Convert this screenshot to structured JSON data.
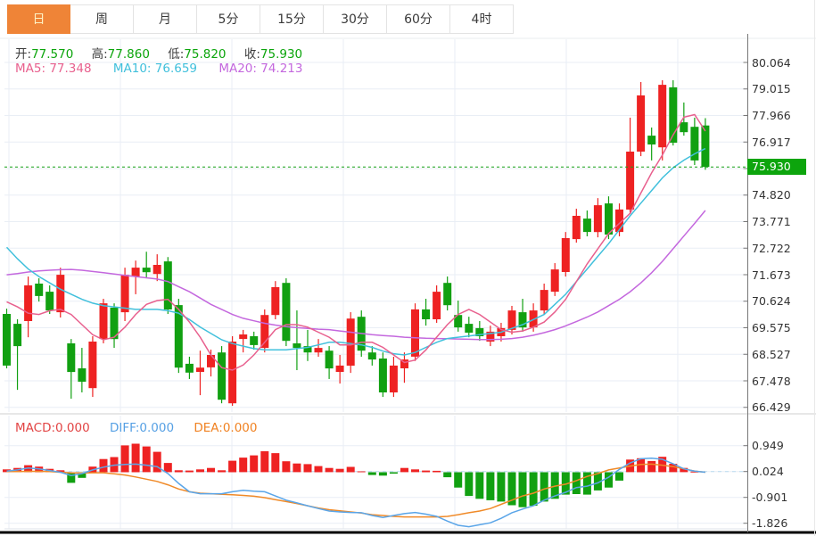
{
  "tabbar": {
    "tabs": [
      {
        "label": "日",
        "selected": true
      },
      {
        "label": "周",
        "selected": false
      },
      {
        "label": "月",
        "selected": false
      },
      {
        "label": "5分",
        "selected": false
      },
      {
        "label": "15分",
        "selected": false
      },
      {
        "label": "30分",
        "selected": false
      },
      {
        "label": "60分",
        "selected": false
      },
      {
        "label": "4时",
        "selected": false
      }
    ]
  },
  "quote": {
    "open_label": "开:",
    "open_value": "77.570",
    "high_label": "高:",
    "high_value": "77.860",
    "low_label": "低:",
    "low_value": "75.820",
    "close_label": "收:",
    "close_value": "75.930"
  },
  "ma_legend": {
    "ma5_label": "MA5:",
    "ma5_value": "77.348",
    "ma10_label": "MA10:",
    "ma10_value": "76.659",
    "ma20_label": "MA20:",
    "ma20_value": "74.213"
  },
  "macd_legend": {
    "macd_label": "MACD:",
    "macd_value": "0.000",
    "diff_label": "DIFF:",
    "diff_value": "0.000",
    "dea_label": "DEA:",
    "dea_value": "0.000"
  },
  "current_price_tag": "75.930",
  "colors": {
    "up": "#ee2222",
    "down": "#11a011",
    "ma5": "#e8608e",
    "ma10": "#41c0dc",
    "ma20": "#c468de",
    "diff": "#5aa5e8",
    "dea": "#f08a28",
    "tab_active": "#ef8437",
    "price_tag": "#0da50d",
    "grid": "#e9eef5",
    "axis": "#777777",
    "zero_dash": "#b9daf0",
    "price_dash": "#14a014"
  },
  "chart_data": {
    "type": "candlestick",
    "convention": "red=up green=down (CN)",
    "panels": [
      "price+MA5/MA10/MA20",
      "MACD histogram + DIFF + DEA"
    ],
    "price_axis_labels": [
      "80.064",
      "79.015",
      "77.966",
      "76.917",
      "75.930",
      "74.820",
      "73.771",
      "72.722",
      "71.673",
      "70.624",
      "69.575",
      "68.527",
      "67.478",
      "66.429"
    ],
    "current_price_label_index": 4,
    "current_price": 75.93,
    "price_ylim": [
      66.429,
      80.064
    ],
    "candles": [
      [
        70.12,
        70.33,
        67.97,
        68.08
      ],
      [
        69.73,
        69.91,
        67.12,
        68.85
      ],
      [
        69.84,
        71.6,
        69.2,
        71.25
      ],
      [
        71.32,
        71.53,
        70.61,
        70.83
      ],
      [
        71.0,
        71.25,
        70.12,
        70.26
      ],
      [
        70.19,
        71.95,
        69.98,
        71.67
      ],
      [
        68.96,
        69.13,
        66.77,
        67.83
      ],
      [
        67.97,
        68.78,
        67.02,
        67.44
      ],
      [
        67.19,
        69.24,
        66.84,
        69.03
      ],
      [
        69.13,
        70.72,
        68.96,
        70.54
      ],
      [
        70.37,
        70.54,
        68.78,
        69.13
      ],
      [
        70.19,
        71.95,
        69.84,
        71.67
      ],
      [
        71.6,
        72.23,
        70.9,
        71.95
      ],
      [
        71.95,
        72.58,
        71.53,
        71.77
      ],
      [
        71.7,
        72.48,
        71.42,
        72.06
      ],
      [
        72.2,
        72.37,
        70.12,
        70.3
      ],
      [
        70.47,
        70.72,
        67.79,
        68.0
      ],
      [
        68.15,
        68.43,
        67.55,
        67.8
      ],
      [
        67.83,
        68.67,
        66.91,
        68.0
      ],
      [
        68.01,
        68.71,
        67.65,
        68.5
      ],
      [
        68.6,
        68.85,
        66.59,
        66.73
      ],
      [
        66.59,
        69.24,
        66.49,
        69.03
      ],
      [
        69.13,
        69.49,
        68.6,
        69.31
      ],
      [
        69.24,
        69.42,
        68.71,
        68.89
      ],
      [
        68.78,
        70.3,
        68.6,
        70.08
      ],
      [
        70.08,
        71.42,
        69.91,
        71.18
      ],
      [
        71.35,
        71.53,
        68.85,
        69.06
      ],
      [
        68.96,
        70.26,
        67.9,
        68.78
      ],
      [
        68.85,
        69.49,
        68.26,
        68.6
      ],
      [
        68.6,
        69.13,
        68.43,
        68.78
      ],
      [
        68.67,
        68.85,
        67.55,
        67.97
      ],
      [
        67.83,
        68.5,
        67.37,
        68.08
      ],
      [
        68.08,
        70.19,
        67.79,
        69.94
      ],
      [
        70.01,
        70.26,
        68.43,
        68.67
      ],
      [
        68.6,
        68.85,
        68.08,
        68.32
      ],
      [
        68.36,
        68.6,
        66.84,
        67.02
      ],
      [
        67.02,
        68.43,
        66.84,
        68.08
      ],
      [
        67.97,
        68.6,
        67.4,
        68.32
      ],
      [
        68.43,
        70.54,
        68.26,
        70.3
      ],
      [
        70.3,
        70.72,
        69.66,
        69.91
      ],
      [
        69.91,
        71.25,
        69.77,
        71.0
      ],
      [
        71.35,
        71.6,
        70.26,
        70.47
      ],
      [
        70.08,
        70.65,
        69.42,
        69.59
      ],
      [
        69.73,
        70.01,
        69.2,
        69.38
      ],
      [
        69.56,
        69.84,
        69.06,
        69.24
      ],
      [
        69.03,
        69.66,
        68.85,
        69.42
      ],
      [
        69.24,
        69.77,
        69.03,
        69.56
      ],
      [
        69.49,
        70.44,
        69.31,
        70.26
      ],
      [
        70.19,
        70.72,
        69.42,
        69.59
      ],
      [
        69.59,
        70.54,
        69.42,
        70.26
      ],
      [
        70.26,
        71.32,
        70.12,
        71.07
      ],
      [
        71.0,
        72.13,
        70.83,
        71.88
      ],
      [
        71.78,
        73.36,
        71.6,
        73.12
      ],
      [
        73.08,
        74.28,
        72.94,
        74.0
      ],
      [
        73.89,
        74.21,
        73.19,
        73.36
      ],
      [
        73.36,
        74.7,
        73.15,
        74.42
      ],
      [
        74.49,
        74.77,
        73.08,
        73.26
      ],
      [
        73.36,
        74.49,
        73.19,
        74.25
      ],
      [
        74.25,
        77.88,
        74.07,
        76.54
      ],
      [
        76.54,
        79.29,
        76.36,
        78.76
      ],
      [
        77.17,
        77.49,
        76.19,
        76.82
      ],
      [
        76.71,
        79.36,
        76.19,
        79.18
      ],
      [
        79.08,
        79.36,
        76.78,
        76.89
      ],
      [
        77.7,
        78.48,
        77.17,
        77.31
      ],
      [
        77.52,
        77.88,
        76.01,
        76.19
      ],
      [
        77.57,
        77.86,
        75.82,
        75.93
      ]
    ],
    "ma5": [
      70.6,
      70.4,
      70.15,
      70.1,
      70.25,
      70.3,
      70.1,
      69.7,
      69.3,
      69.1,
      69.2,
      69.6,
      70.1,
      70.5,
      70.65,
      70.7,
      70.3,
      69.8,
      69.2,
      68.5,
      68.0,
      67.9,
      68.1,
      68.5,
      69.0,
      69.5,
      69.7,
      69.7,
      69.6,
      69.4,
      69.2,
      68.9,
      68.9,
      69.0,
      69.0,
      68.8,
      68.5,
      68.2,
      68.3,
      68.7,
      69.2,
      69.7,
      70.1,
      70.3,
      70.1,
      69.8,
      69.5,
      69.4,
      69.45,
      69.6,
      69.8,
      70.2,
      70.7,
      71.4,
      72.1,
      72.7,
      73.3,
      73.7,
      74.1,
      74.9,
      75.7,
      76.4,
      77.2,
      77.9,
      78.0,
      77.35
    ],
    "ma10": [
      72.76,
      72.3,
      71.9,
      71.6,
      71.35,
      71.1,
      70.9,
      70.7,
      70.55,
      70.45,
      70.4,
      70.35,
      70.3,
      70.3,
      70.3,
      70.25,
      70.15,
      69.9,
      69.6,
      69.35,
      69.1,
      68.95,
      68.85,
      68.75,
      68.7,
      68.7,
      68.7,
      68.75,
      68.8,
      68.9,
      69.0,
      69.0,
      68.95,
      68.9,
      68.8,
      68.65,
      68.55,
      68.5,
      68.6,
      68.8,
      69.0,
      69.15,
      69.2,
      69.25,
      69.3,
      69.35,
      69.4,
      69.55,
      69.7,
      69.9,
      70.1,
      70.5,
      70.9,
      71.4,
      71.9,
      72.4,
      72.9,
      73.45,
      74.0,
      74.5,
      75.0,
      75.5,
      75.9,
      76.2,
      76.45,
      76.66
    ],
    "ma20": [
      71.67,
      71.72,
      71.78,
      71.82,
      71.85,
      71.87,
      71.88,
      71.85,
      71.8,
      71.75,
      71.7,
      71.65,
      71.6,
      71.55,
      71.5,
      71.4,
      71.2,
      71.0,
      70.75,
      70.5,
      70.3,
      70.1,
      69.95,
      69.85,
      69.75,
      69.68,
      69.62,
      69.58,
      69.55,
      69.52,
      69.5,
      69.45,
      69.4,
      69.35,
      69.3,
      69.27,
      69.24,
      69.2,
      69.18,
      69.16,
      69.15,
      69.14,
      69.13,
      69.12,
      69.11,
      69.11,
      69.12,
      69.15,
      69.2,
      69.28,
      69.38,
      69.5,
      69.65,
      69.82,
      70.0,
      70.2,
      70.45,
      70.7,
      71.0,
      71.35,
      71.75,
      72.2,
      72.7,
      73.2,
      73.7,
      74.21
    ],
    "macd_axis_labels": [
      "0.949",
      "0.024",
      "-0.901",
      "-1.826"
    ],
    "macd_tick_values": [
      0.949,
      0.024,
      -0.901,
      -1.826
    ],
    "macd_hist": [
      0.1,
      0.15,
      0.25,
      0.2,
      0.12,
      0.07,
      -0.38,
      -0.2,
      0.2,
      0.47,
      0.54,
      0.96,
      1.02,
      0.92,
      0.73,
      0.33,
      0.07,
      0.06,
      0.1,
      0.15,
      0.07,
      0.41,
      0.52,
      0.6,
      0.75,
      0.68,
      0.39,
      0.31,
      0.29,
      0.22,
      0.15,
      0.12,
      0.19,
      0.03,
      -0.1,
      -0.12,
      -0.05,
      0.15,
      0.1,
      0.06,
      0.05,
      -0.18,
      -0.55,
      -0.85,
      -0.95,
      -1.0,
      -1.05,
      -1.18,
      -1.25,
      -1.2,
      -1.05,
      -0.95,
      -0.8,
      -0.78,
      -0.8,
      -0.65,
      -0.55,
      -0.3,
      0.45,
      0.5,
      0.4,
      0.55,
      0.3,
      0.15,
      0.02,
      0.0
    ],
    "diff_line": [
      0.04,
      0.08,
      0.15,
      0.12,
      0.06,
      0.0,
      -0.12,
      -0.05,
      0.08,
      0.18,
      0.25,
      0.28,
      0.29,
      0.25,
      0.2,
      -0.05,
      -0.4,
      -0.7,
      -0.77,
      -0.77,
      -0.77,
      -0.7,
      -0.65,
      -0.68,
      -0.7,
      -0.85,
      -1.0,
      -1.1,
      -1.2,
      -1.3,
      -1.39,
      -1.42,
      -1.44,
      -1.45,
      -1.55,
      -1.62,
      -1.55,
      -1.48,
      -1.44,
      -1.5,
      -1.58,
      -1.75,
      -1.9,
      -1.95,
      -1.88,
      -1.81,
      -1.65,
      -1.45,
      -1.32,
      -1.2,
      -1.0,
      -0.85,
      -0.72,
      -0.55,
      -0.5,
      -0.38,
      -0.18,
      0.1,
      0.33,
      0.48,
      0.5,
      0.46,
      0.3,
      0.12,
      0.04,
      0.0
    ],
    "dea_line": [
      0.02,
      0.02,
      0.03,
      0.03,
      0.02,
      0.0,
      -0.02,
      -0.03,
      -0.02,
      -0.02,
      -0.06,
      -0.1,
      -0.17,
      -0.25,
      -0.33,
      -0.45,
      -0.6,
      -0.7,
      -0.75,
      -0.77,
      -0.79,
      -0.81,
      -0.83,
      -0.86,
      -0.91,
      -0.98,
      -1.05,
      -1.12,
      -1.2,
      -1.28,
      -1.34,
      -1.38,
      -1.42,
      -1.46,
      -1.52,
      -1.55,
      -1.58,
      -1.6,
      -1.6,
      -1.6,
      -1.6,
      -1.58,
      -1.52,
      -1.45,
      -1.39,
      -1.3,
      -1.15,
      -1.0,
      -0.85,
      -0.75,
      -0.6,
      -0.5,
      -0.43,
      -0.3,
      -0.15,
      -0.05,
      0.08,
      0.15,
      0.22,
      0.28,
      0.29,
      0.25,
      0.2,
      0.12,
      0.04,
      0.0
    ],
    "grid": true,
    "legend_position": "top-left overlay"
  }
}
